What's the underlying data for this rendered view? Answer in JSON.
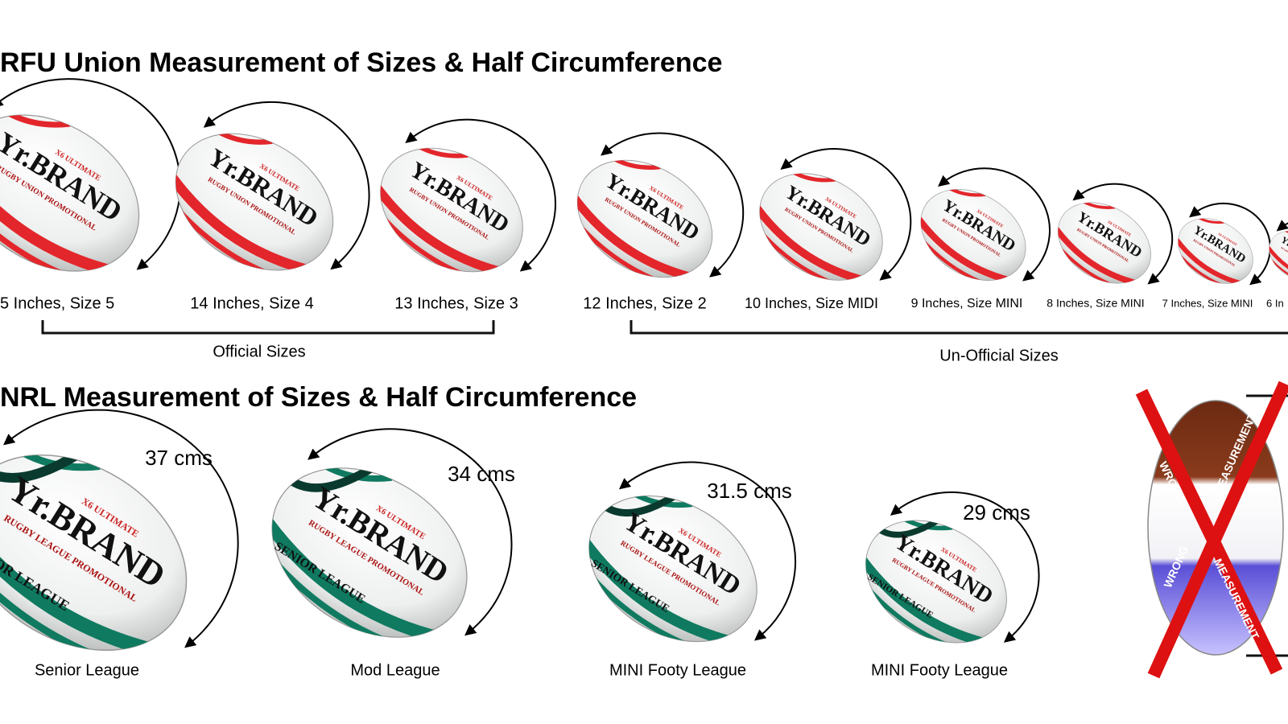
{
  "union": {
    "title": "RFU Union Measurement of Sizes & Half Circumference",
    "balls": [
      "5 Inches, Size 5",
      "14 Inches, Size 4",
      "13 Inches, Size 3",
      "12 Inches, Size 2",
      "10 Inches, Size MIDI",
      "9 Inches, Size MINI",
      "8 Inches, Size MINI",
      "7 Inches, Size MINI",
      "6 In"
    ],
    "groups": [
      "Official Sizes",
      "Un-Official Sizes"
    ]
  },
  "league": {
    "title": "NRL Measurement of Sizes & Half Circumference",
    "balls": [
      {
        "measure": "37 cms",
        "label": "Senior League"
      },
      {
        "measure": "34 cms",
        "label": "Mod League"
      },
      {
        "measure": "31.5 cms",
        "label": "MINI Footy League"
      },
      {
        "measure": "29 cms",
        "label": "MINI Footy League"
      }
    ]
  },
  "ball_print": {
    "maker": "X6 ULTIMATE",
    "brand": "Yr.BRAND",
    "union": "RUGBY UNION PROMOTIONAL",
    "league": "RUGBY LEAGUE PROMOTIONAL",
    "senior": "SENIOR LEAGUE"
  },
  "wrong": [
    "WRONG",
    "MEASUREMENT",
    "WRONG",
    "MEASUREMENT"
  ]
}
